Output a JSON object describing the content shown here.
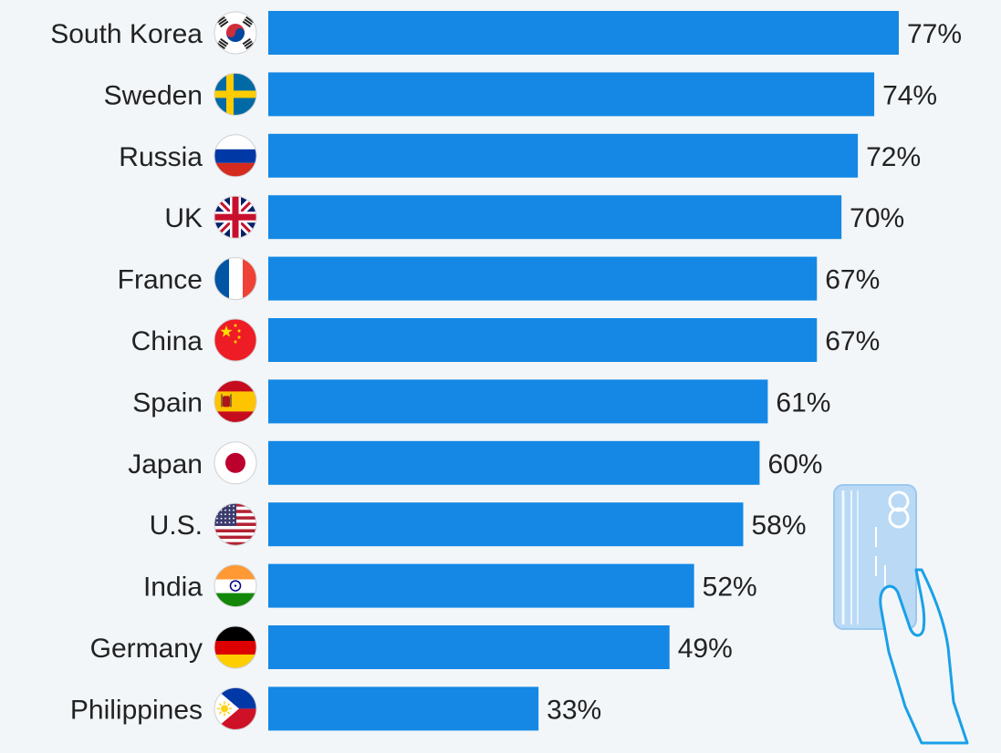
{
  "chart_data": {
    "type": "bar",
    "orientation": "horizontal",
    "categories": [
      "South Korea",
      "Sweden",
      "Russia",
      "UK",
      "France",
      "China",
      "Spain",
      "Japan",
      "U.S.",
      "India",
      "Germany",
      "Philippines"
    ],
    "values": [
      77,
      74,
      72,
      70,
      67,
      67,
      61,
      60,
      58,
      52,
      49,
      33
    ],
    "value_labels": [
      "77%",
      "74%",
      "72%",
      "70%",
      "67%",
      "67%",
      "61%",
      "60%",
      "58%",
      "52%",
      "49%",
      "33%"
    ],
    "unit": "%",
    "xlim": [
      0,
      77
    ],
    "grid": false,
    "legend": "none",
    "bar_color": "#1488e4",
    "flag_icons": [
      "south-korea-flag-icon",
      "sweden-flag-icon",
      "russia-flag-icon",
      "uk-flag-icon",
      "france-flag-icon",
      "china-flag-icon",
      "spain-flag-icon",
      "japan-flag-icon",
      "us-flag-icon",
      "india-flag-icon",
      "germany-flag-icon",
      "philippines-flag-icon"
    ]
  },
  "illustration": {
    "icon": "hand-holding-credit-card-icon",
    "colors": {
      "card": "#b9d9f5",
      "outline": "#1aa0e8"
    }
  },
  "colors": {
    "background": "#f2f6f9",
    "label_text": "#222222",
    "value_text": "#222222"
  }
}
